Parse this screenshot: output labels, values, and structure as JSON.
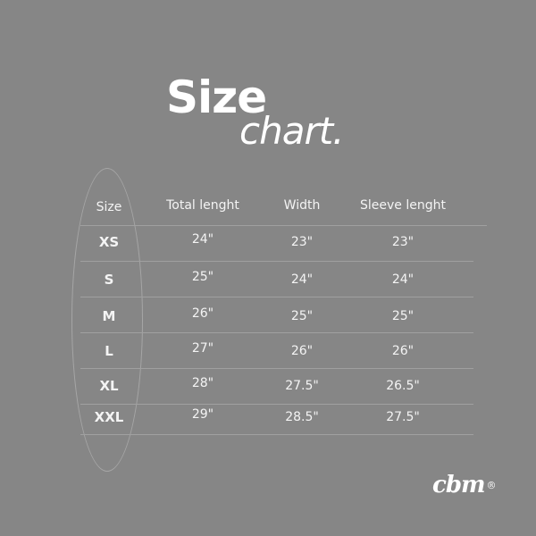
{
  "title": {
    "line1": "Size",
    "line2": "chart."
  },
  "table": {
    "headers": [
      "Size",
      "Total lenght",
      "Width",
      "Sleeve lenght"
    ],
    "rows": [
      [
        "XS",
        "24\"",
        "23\"",
        "23\""
      ],
      [
        "S",
        "25\"",
        "24\"",
        "24\""
      ],
      [
        "M",
        "26\"",
        "25\"",
        "25\""
      ],
      [
        "L",
        "27\"",
        "26\"",
        "26\""
      ],
      [
        "XL",
        "28\"",
        "27.5\"",
        "26.5\""
      ],
      [
        "XXL",
        "29\"",
        "28.5\"",
        "27.5\""
      ]
    ]
  },
  "brand": {
    "logo_text": "cbm",
    "registered": "®"
  },
  "colors": {
    "background": "#868686",
    "text": "#f4f4f4"
  }
}
